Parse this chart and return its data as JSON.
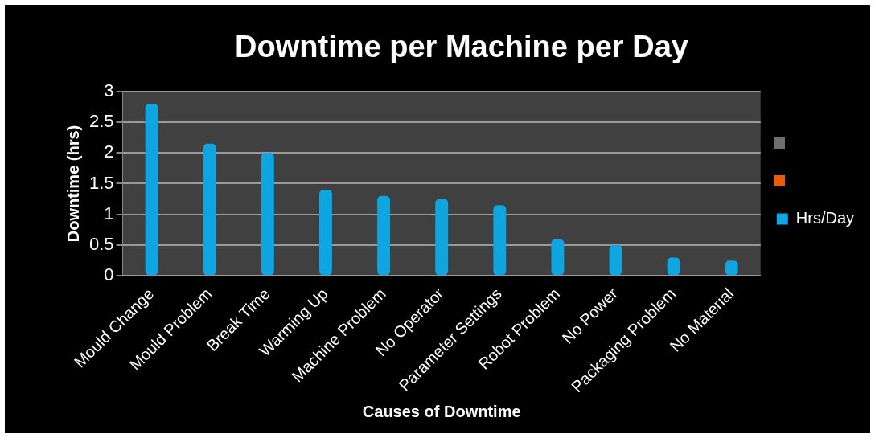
{
  "chart_data": {
    "type": "bar",
    "title": "Downtime per Machine per Day",
    "xlabel": "Causes of Downtime",
    "ylabel": "Downtime (hrs)",
    "categories": [
      "Mould Change",
      "Mould Problem",
      "Break Time",
      "Warming Up",
      "Machine Problem",
      "No Operator",
      "Parameter Settings",
      "Robot Problem",
      "No Power",
      "Packaging Problem",
      "No Material"
    ],
    "series": [
      {
        "name": "Hrs/Day",
        "color": "#0ea5e0",
        "values": [
          2.8,
          2.15,
          2.0,
          1.4,
          1.3,
          1.25,
          1.15,
          0.6,
          0.5,
          0.3,
          0.25
        ]
      }
    ],
    "ylim": [
      0,
      3
    ],
    "yticks": [
      0,
      0.5,
      1,
      1.5,
      2,
      2.5,
      3
    ],
    "grid": "y",
    "legend": "right"
  }
}
